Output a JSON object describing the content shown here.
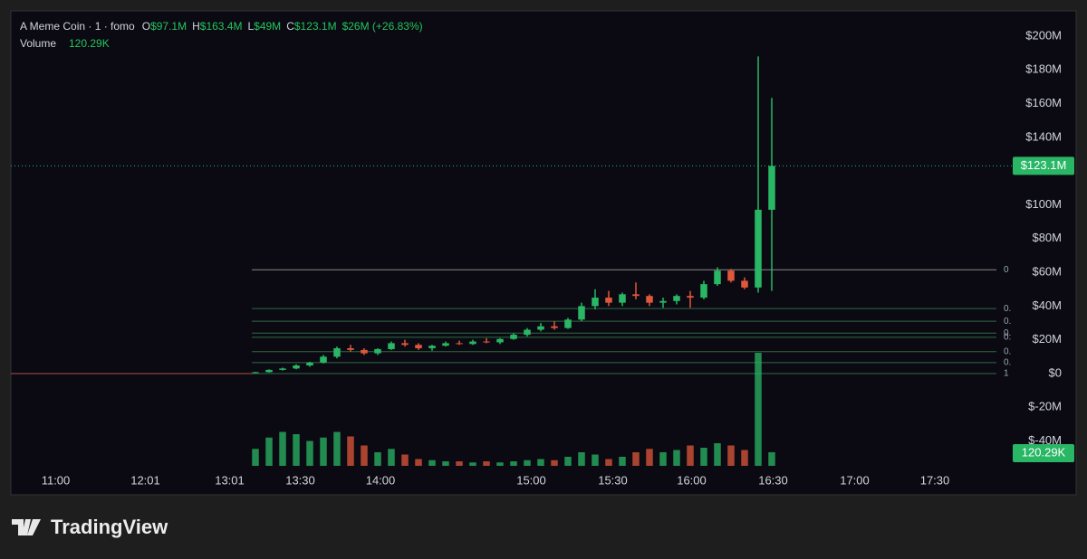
{
  "chart_data": {
    "type": "candlestick",
    "title": "A Meme Coin · 1 · fomo",
    "ohlc_labels": {
      "o": "O",
      "o_value": "$97.1M",
      "h": "H",
      "h_value": "$163.4M",
      "l": "L",
      "l_value": "$49M",
      "c": "C",
      "c_value": "$123.1M",
      "change": "$26M (+26.83%)"
    },
    "volume_label": "Volume",
    "volume_value": "120.29K",
    "last_price": 123.1,
    "last_price_label": "$123.1M",
    "up_color": "#29b765",
    "down_color": "#e0583b",
    "xlim": [
      0,
      73.2
    ],
    "xticks": [
      {
        "value": 3.3,
        "label": "11:00"
      },
      {
        "value": 9.9,
        "label": "12:01"
      },
      {
        "value": 16.1,
        "label": "13:01"
      },
      {
        "value": 21.3,
        "label": "13:30"
      },
      {
        "value": 27.2,
        "label": "14:00"
      },
      {
        "value": 38.3,
        "label": "15:00"
      },
      {
        "value": 44.3,
        "label": "15:30"
      },
      {
        "value": 50.1,
        "label": "16:00"
      },
      {
        "value": 56.1,
        "label": "16:30"
      },
      {
        "value": 62.1,
        "label": "17:00"
      },
      {
        "value": 68,
        "label": "17:30"
      }
    ],
    "ylim": [
      -54.7,
      215
    ],
    "yticks": [
      {
        "value": 200,
        "label": "$200M"
      },
      {
        "value": 180,
        "label": "$180M"
      },
      {
        "value": 160,
        "label": "$160M"
      },
      {
        "value": 140,
        "label": "$140M"
      },
      {
        "value": 100,
        "label": "$100M"
      },
      {
        "value": 80,
        "label": "$80M"
      },
      {
        "value": 60,
        "label": "$60M"
      },
      {
        "value": 40,
        "label": "$40M"
      },
      {
        "value": 20,
        "label": "$20M"
      },
      {
        "value": 0,
        "label": "$0"
      },
      {
        "value": -20,
        "label": "$-20M"
      },
      {
        "value": -40,
        "label": "$-40M"
      }
    ],
    "baseline": {
      "x": [
        0,
        17.8
      ],
      "values": [
        0,
        0
      ]
    },
    "fib_levels": [
      {
        "value": 61.5,
        "label": "0"
      },
      {
        "value": 38.5,
        "label": "0."
      },
      {
        "value": 31,
        "label": "0."
      },
      {
        "value": 24,
        "label": "0."
      },
      {
        "value": 21.5,
        "label": "0."
      },
      {
        "value": 13,
        "label": "0."
      },
      {
        "value": 6.5,
        "label": "0."
      },
      {
        "value": 0,
        "label": "1"
      }
    ],
    "x": [
      18,
      19,
      20,
      21,
      22,
      23,
      24,
      25,
      26,
      27,
      28,
      29,
      30,
      31,
      32,
      33,
      34,
      35,
      36,
      37,
      38,
      39,
      40,
      41,
      42,
      43,
      44,
      45,
      46,
      47,
      48,
      49,
      50,
      51,
      52,
      53,
      54,
      55,
      56
    ],
    "open": [
      0.3,
      0.8,
      2.2,
      3,
      4.8,
      6.5,
      10,
      15,
      14,
      12,
      14.5,
      18,
      17,
      15,
      16.5,
      18,
      17.5,
      19,
      18.5,
      20.5,
      23,
      26,
      28,
      27,
      32,
      40,
      45,
      42,
      47,
      46,
      42,
      43,
      46,
      45,
      53,
      61,
      55,
      51,
      97.1
    ],
    "high": [
      1,
      2.5,
      3.5,
      5.5,
      7,
      11,
      16,
      17,
      15,
      15,
      19,
      20,
      18,
      17,
      19,
      19.5,
      20,
      21,
      21,
      24,
      27,
      30,
      31,
      33,
      42,
      50,
      49,
      48,
      54,
      47,
      45,
      47,
      49,
      55,
      63,
      62,
      57,
      188,
      163.4
    ],
    "low": [
      0.2,
      0.6,
      1.8,
      2.5,
      4,
      6,
      9,
      13,
      11,
      11,
      14,
      16,
      14,
      13.5,
      16,
      17,
      17,
      18,
      17.5,
      20,
      22,
      25,
      26,
      26.5,
      31,
      38,
      40,
      40,
      44,
      40,
      39,
      41,
      39,
      44,
      52,
      54,
      50,
      48,
      49
    ],
    "close": [
      0.8,
      2.2,
      3,
      4.8,
      6.5,
      10,
      15,
      14,
      12,
      14.5,
      18,
      17,
      15,
      16.5,
      18,
      17.5,
      19,
      18.5,
      20.5,
      23,
      26,
      28,
      27,
      32,
      40,
      45,
      42,
      47,
      46,
      42,
      43,
      46,
      45,
      53,
      61,
      55,
      51,
      97.1,
      123.1
    ],
    "volume": [
      150,
      250,
      300,
      280,
      220,
      250,
      300,
      260,
      180,
      120,
      150,
      100,
      60,
      50,
      40,
      40,
      30,
      40,
      30,
      40,
      50,
      60,
      50,
      80,
      120,
      100,
      60,
      80,
      120,
      150,
      120,
      140,
      180,
      160,
      200,
      180,
      140,
      1000,
      120.29
    ]
  },
  "footer": {
    "brand": "TradingView"
  }
}
